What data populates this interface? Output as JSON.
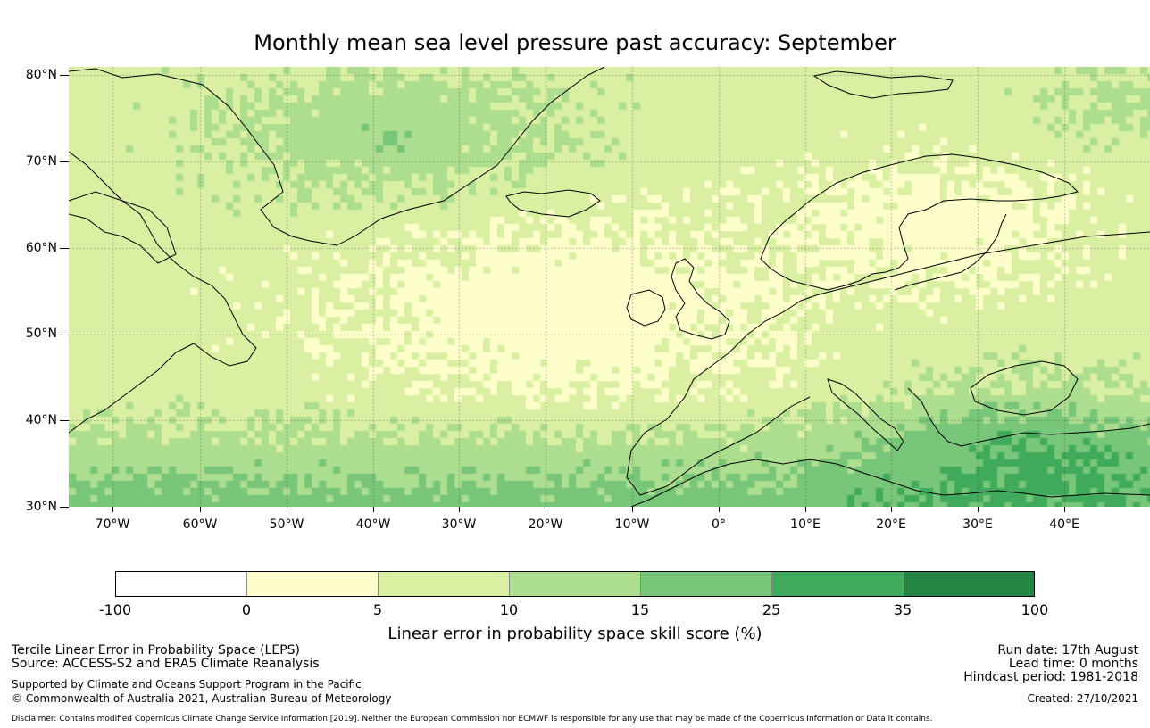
{
  "title": "Monthly mean sea level pressure past accuracy: September",
  "map": {
    "lat_labels": [
      "80°N",
      "70°N",
      "60°N",
      "50°N",
      "40°N",
      "30°N"
    ],
    "lon_labels": [
      "70°W",
      "60°W",
      "50°W",
      "40°W",
      "30°W",
      "20°W",
      "10°W",
      "0°",
      "10°E",
      "20°E",
      "30°E",
      "40°E"
    ],
    "lat_range": [
      30,
      81
    ],
    "lon_range": [
      -75,
      50
    ],
    "gridlines": true
  },
  "colorbar": {
    "ticks": [
      "-100",
      "0",
      "5",
      "10",
      "15",
      "25",
      "35",
      "100"
    ],
    "colors": [
      "#ffffff",
      "#ffffcc",
      "#d9f0a3",
      "#addd8e",
      "#78c679",
      "#41ab5d",
      "#238443"
    ],
    "title": "Linear error in probability space skill score (%)"
  },
  "footer": {
    "left_line1": "Tercile Linear Error in Probability Space (LEPS)",
    "left_line2": "Source: ACCESS-S2 and ERA5 Climate Reanalysis",
    "left_line3": "Supported by Climate and Oceans Support Program in the Pacific",
    "left_line4": "© Commonwealth of Australia 2021, Australian Bureau of Meteorology",
    "right_line1": "Run date: 17th August",
    "right_line2": "Lead time: 0 months",
    "right_line3": "Hindcast period: 1981-2018",
    "right_line4": "Created: 27/10/2021",
    "disclaimer": "Disclaimer: Contains modified Copernicus Climate Change Service Information [2019]. Neither the European Commission nor ECMWF is responsible for any use that may be made of the Copernicus Information or Data it contains."
  }
}
